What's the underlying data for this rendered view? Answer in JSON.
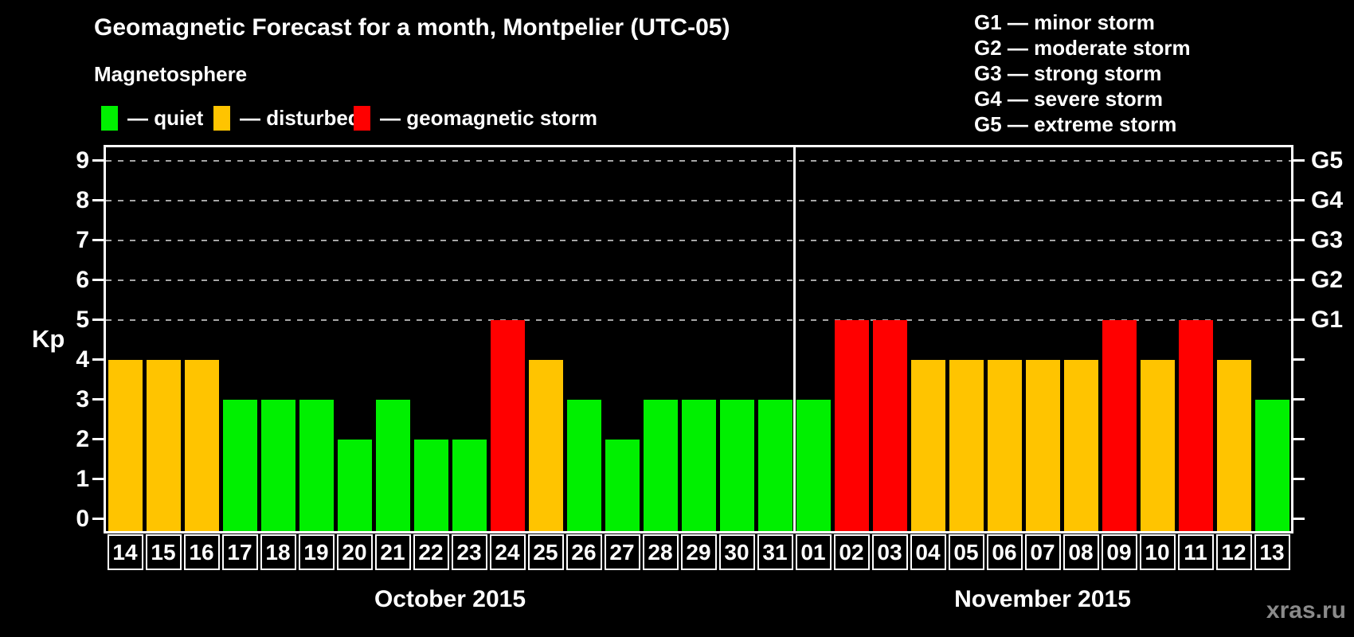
{
  "header": {
    "title": "Geomagnetic Forecast for a month, Montpelier (UTC-05)",
    "subtitle": "Magnetosphere"
  },
  "legend": {
    "quiet": {
      "label": "— quiet",
      "color": "#00f000"
    },
    "disturbed": {
      "label": "— disturbed",
      "color": "#ffc400"
    },
    "storm": {
      "label": "— geomagnetic storm",
      "color": "#ff0000"
    }
  },
  "g_legend": [
    "G1 — minor storm",
    "G2 — moderate storm",
    "G3 — strong storm",
    "G4 — severe storm",
    "G5 — extreme storm"
  ],
  "watermark": "xras.ru",
  "chart_data": {
    "type": "bar",
    "ylabel": "Kp",
    "ylim": [
      0,
      9
    ],
    "yticks": [
      0,
      1,
      2,
      3,
      4,
      5,
      6,
      7,
      8,
      9
    ],
    "grid_levels": [
      5,
      6,
      7,
      8,
      9
    ],
    "grid": "dashed horizontal at storm levels only",
    "categories": [
      "14",
      "15",
      "16",
      "17",
      "18",
      "19",
      "20",
      "21",
      "22",
      "23",
      "24",
      "25",
      "26",
      "27",
      "28",
      "29",
      "30",
      "31",
      "01",
      "02",
      "03",
      "04",
      "05",
      "06",
      "07",
      "08",
      "09",
      "10",
      "11",
      "12",
      "13"
    ],
    "values": [
      4,
      4,
      4,
      3,
      3,
      3,
      2,
      3,
      2,
      2,
      5,
      4,
      3,
      2,
      3,
      3,
      3,
      3,
      3,
      5,
      5,
      4,
      4,
      4,
      4,
      4,
      5,
      4,
      5,
      4,
      3
    ],
    "months": [
      {
        "label": "October 2015",
        "days": 18
      },
      {
        "label": "November 2015",
        "days": 13
      }
    ],
    "right_axis": [
      {
        "kp": 5,
        "label": "G1"
      },
      {
        "kp": 6,
        "label": "G2"
      },
      {
        "kp": 7,
        "label": "G3"
      },
      {
        "kp": 8,
        "label": "G4"
      },
      {
        "kp": 9,
        "label": "G5"
      }
    ],
    "color_thresholds": {
      "quiet_max": 3,
      "disturbed": 4,
      "storm_min": 5
    }
  }
}
